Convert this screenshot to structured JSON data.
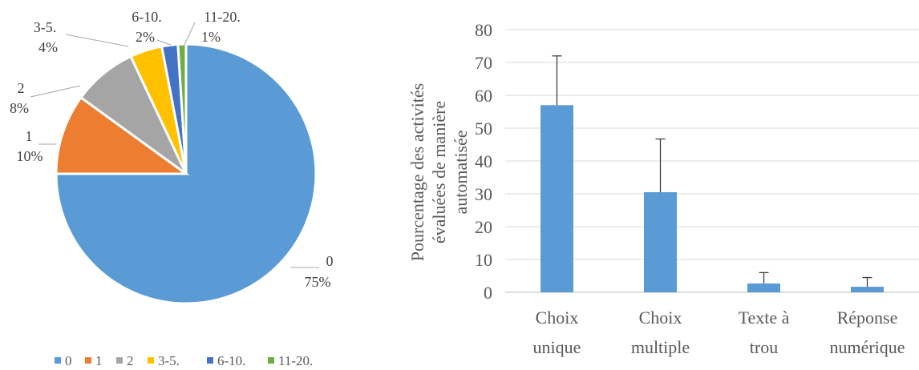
{
  "chart_data": [
    {
      "type": "pie",
      "slices": [
        {
          "label": "0",
          "value": 75,
          "pct_label": "75%",
          "color": "#5B9BD5"
        },
        {
          "label": "1",
          "value": 10,
          "pct_label": "10%",
          "color": "#ED7D31"
        },
        {
          "label": "2",
          "value": 8,
          "pct_label": "8%",
          "color": "#A5A5A5"
        },
        {
          "label": "3-5.",
          "value": 4,
          "pct_label": "4%",
          "color": "#FFC000"
        },
        {
          "label": "6-10.",
          "value": 2,
          "pct_label": "2%",
          "color": "#4472C4"
        },
        {
          "label": "11-20.",
          "value": 1,
          "pct_label": "1%",
          "color": "#70AD47"
        }
      ],
      "legend": [
        "0",
        "1",
        "2",
        "3-5.",
        "6-10.",
        "11-20."
      ],
      "legend_position": "bottom"
    },
    {
      "type": "bar",
      "categories": [
        {
          "line1": "Choix",
          "line2": "unique"
        },
        {
          "line1": "Choix",
          "line2": "multiple"
        },
        {
          "line1": "Texte à",
          "line2": "trou"
        },
        {
          "line1": "Réponse",
          "line2": "numérique"
        }
      ],
      "values": [
        57,
        30.5,
        2.7,
        1.7
      ],
      "error_upper": [
        72,
        46.7,
        6,
        4.5
      ],
      "ylabel_lines": [
        "Pourcentage des activités",
        "évaluées de manière",
        "automatisée"
      ],
      "ylim": [
        0,
        80
      ],
      "yticks": [
        0,
        10,
        20,
        30,
        40,
        50,
        60,
        70,
        80
      ],
      "grid": true,
      "bar_color": "#5B9BD5"
    }
  ]
}
